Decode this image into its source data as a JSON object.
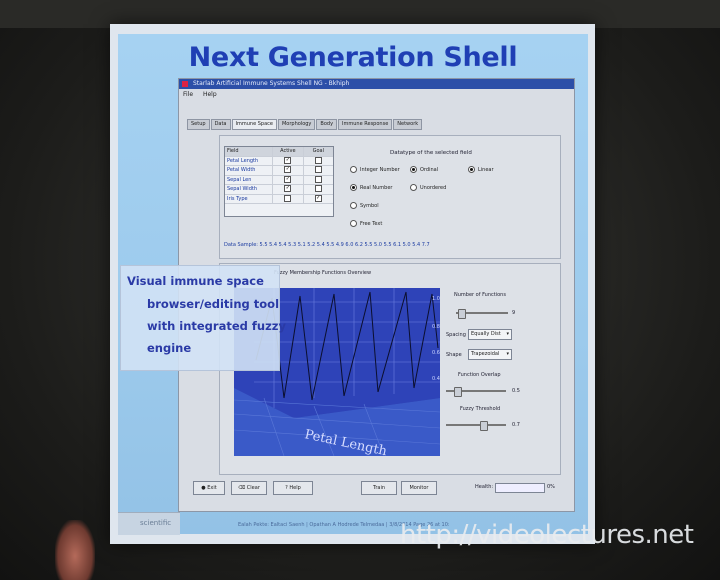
{
  "slide": {
    "title": "Next Generation Shell",
    "callout_lines": [
      "Visual immune space",
      "browser/editing tool",
      "with integrated fuzzy",
      "engine"
    ],
    "footer": "Ealah Pekte: Ealtaci Saenh | Opathan A Hodrede Telmedaa | 3/8/2014 Page 26 at 10:",
    "brand": "scientific"
  },
  "app": {
    "window_title": "Starlab Artificial Immune Systems Shell NG  - Bkhiph",
    "menu": [
      "File",
      "Help"
    ],
    "tabs": [
      "Setup",
      "Data",
      "Immune Space",
      "Morphology",
      "Body",
      "Immune Response",
      "Network"
    ],
    "active_tab": "Immune Space",
    "grid": {
      "headers": [
        "Field",
        "Active",
        "Goal"
      ],
      "rows": [
        {
          "field": "Petal Length",
          "active": true,
          "goal": false
        },
        {
          "field": "Petal Width",
          "active": true,
          "goal": false
        },
        {
          "field": "Sepal Len",
          "active": true,
          "goal": false
        },
        {
          "field": "Sepal Width",
          "active": true,
          "goal": false
        },
        {
          "field": "Iris Type",
          "active": false,
          "goal": true
        }
      ]
    },
    "datatype": {
      "title": "Datatype of the selected field",
      "options": [
        {
          "label": "Integer Number",
          "selected": false
        },
        {
          "label": "Ordinal",
          "selected": true
        },
        {
          "label": "Linear",
          "selected": true
        },
        {
          "label": "Real Number",
          "selected": true
        },
        {
          "label": "Unordered",
          "selected": false
        },
        {
          "label": "Symbol",
          "selected": false
        },
        {
          "label": "Free Text",
          "selected": false
        }
      ]
    },
    "data_sample": "Data Sample: 5.5  5.4  5.4  5.3  5.1  5.2  5.4  5.5  4.9  6.0  6.2  5.5  5.0  5.5  6.1  5.0  5.4  7.7",
    "fuzzy": {
      "title": "Fuzzy Membership Functions Overview",
      "axis_label": "Petal Length",
      "number_of_functions_label": "Number of Functions",
      "number_of_functions": "9",
      "spacing_label": "Spacing",
      "spacing_value": "Equally Dist",
      "shape_label": "Shape",
      "shape_value": "Trapezoidal",
      "overlap_label": "Function Overlap",
      "overlap_value": "0.5",
      "threshold_label": "Fuzzy Threshold",
      "threshold_value": "0.7"
    },
    "buttons": {
      "exit": "Exit",
      "clear": "Clear",
      "help": "Help",
      "train": "Train",
      "monitor": "Monitor",
      "health_label": "Health:",
      "health_value": "0%"
    }
  },
  "watermark": "http://videolectures.net"
}
